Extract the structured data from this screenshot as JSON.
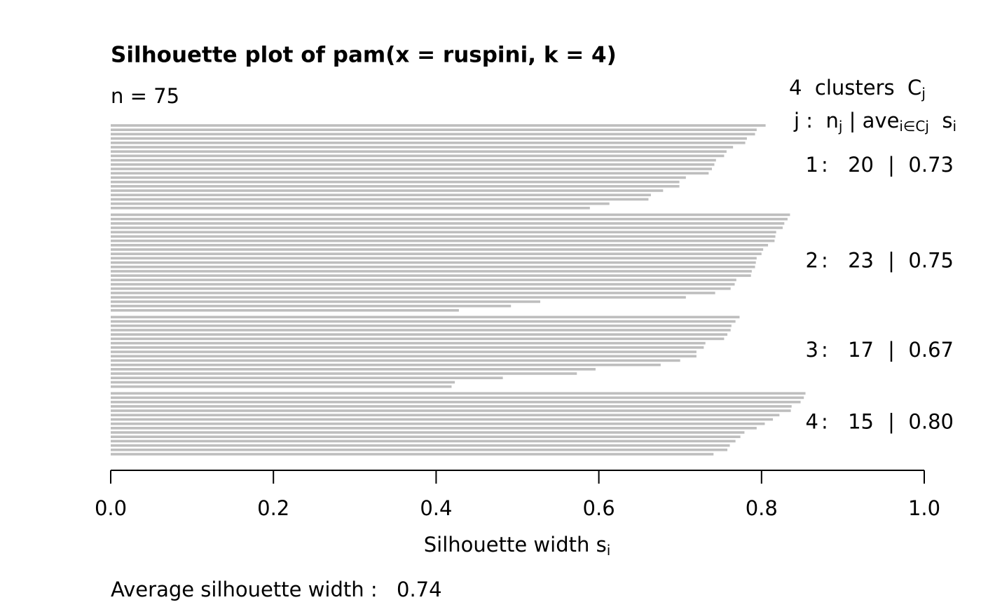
{
  "chart_data": {
    "type": "bar",
    "orientation": "horizontal",
    "title": "Silhouette plot of pam(x = ruspini, k = 4)",
    "subtitle": "n = 75",
    "x_label": [
      "Silhouette width s",
      "i"
    ],
    "cluster_header": [
      "4  clusters  C",
      "j"
    ],
    "cluster_columns": [
      "j :  n",
      "j",
      " | ave",
      "i∈Cj",
      "  s",
      "i"
    ],
    "row_separators": [
      ":",
      "|"
    ],
    "cluster_ids": [
      1,
      2,
      3,
      4
    ],
    "cluster_sizes": [
      20,
      23,
      17,
      15
    ],
    "cluster_averages": [
      0.73,
      0.75,
      0.67,
      0.8
    ],
    "cluster_average_labels": [
      "0.73",
      "0.75",
      "0.67",
      "0.80"
    ],
    "footer_label": "Average silhouette width :",
    "footer_value": 0.74,
    "color": "#bebebe",
    "values": [
      0.805,
      0.794,
      0.792,
      0.782,
      0.78,
      0.765,
      0.757,
      0.754,
      0.744,
      0.742,
      0.739,
      0.735,
      0.707,
      0.699,
      0.699,
      0.679,
      0.664,
      0.661,
      0.613,
      0.589,
      0.835,
      0.832,
      0.828,
      0.826,
      0.818,
      0.817,
      0.816,
      0.808,
      0.802,
      0.8,
      0.794,
      0.793,
      0.792,
      0.788,
      0.787,
      0.769,
      0.767,
      0.762,
      0.743,
      0.707,
      0.528,
      0.492,
      0.428,
      0.773,
      0.768,
      0.763,
      0.762,
      0.758,
      0.754,
      0.731,
      0.729,
      0.72,
      0.72,
      0.7,
      0.676,
      0.596,
      0.573,
      0.482,
      0.423,
      0.419,
      0.854,
      0.852,
      0.848,
      0.837,
      0.836,
      0.822,
      0.814,
      0.804,
      0.794,
      0.779,
      0.774,
      0.768,
      0.761,
      0.758,
      0.741
    ],
    "xlim": [
      0,
      1
    ],
    "xticks": [
      {
        "value": 0,
        "label": "0.0"
      },
      0.2,
      0.4,
      0.6,
      0.8,
      {
        "value": 1,
        "label": "1.0"
      }
    ]
  }
}
